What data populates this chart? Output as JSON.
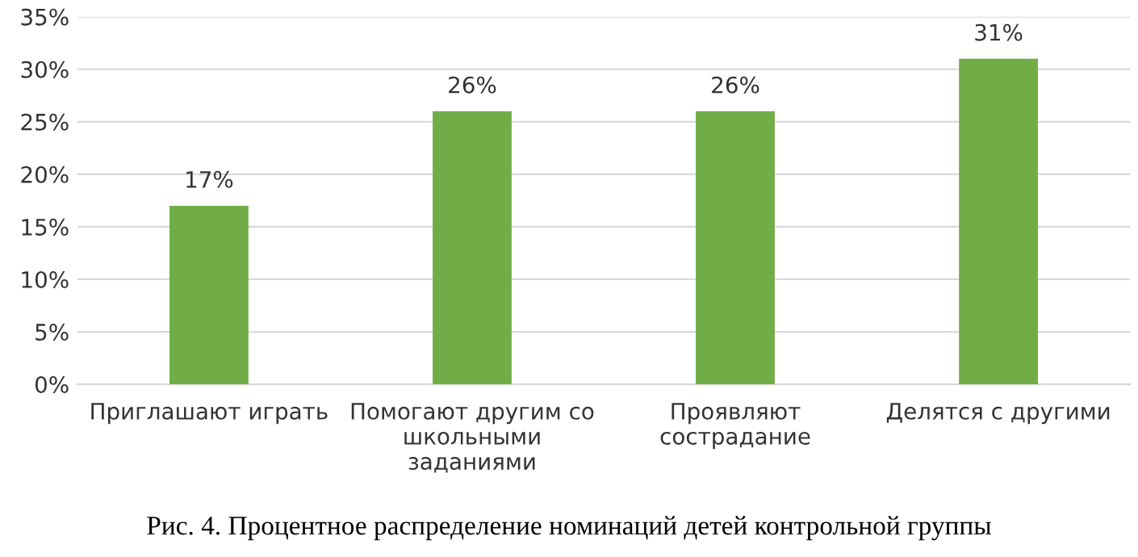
{
  "chart_data": {
    "type": "bar",
    "categories": [
      "Приглашают играть",
      "Помогают другим со\nшкольными\nзаданиями",
      "Проявляют\nсострадание",
      "Делятся с другими"
    ],
    "values": [
      17,
      26,
      26,
      31
    ],
    "value_labels": [
      "17%",
      "26%",
      "26%",
      "31%"
    ],
    "color": "#70ad47",
    "ylim": [
      0,
      35
    ],
    "yticks": [
      {
        "value": 0,
        "label": "0%"
      },
      {
        "value": 5,
        "label": "5%"
      },
      {
        "value": 10,
        "label": "10%"
      },
      {
        "value": 15,
        "label": "15%"
      },
      {
        "value": 20,
        "label": "20%"
      },
      {
        "value": 25,
        "label": "25%"
      },
      {
        "value": 30,
        "label": "30%"
      },
      {
        "value": 35,
        "label": "35%"
      }
    ],
    "grid": "y",
    "legend": false,
    "annotations": [
      "Рис. 4. Процентное распределение номинаций детей контрольной группы"
    ]
  }
}
